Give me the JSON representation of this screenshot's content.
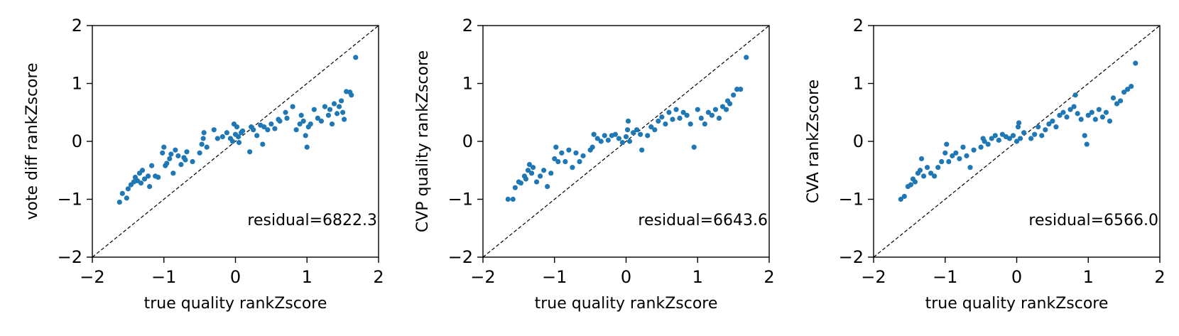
{
  "chart_data": [
    {
      "type": "scatter",
      "xlabel": "true quality rankZscore",
      "ylabel": "vote diff rankZscore",
      "xlim": [
        -2,
        2
      ],
      "ylim": [
        -2,
        2
      ],
      "xticks": [
        "−2",
        "−1",
        "0",
        "1",
        "2"
      ],
      "yticks": [
        "−2",
        "−1",
        "0",
        "1",
        "2"
      ],
      "reference_line": "y = x",
      "annotation": "residual=6822.3",
      "color": "#1f77b4",
      "points": [
        [
          -1.62,
          -1.05
        ],
        [
          -1.58,
          -0.9
        ],
        [
          -1.52,
          -0.98
        ],
        [
          -1.5,
          -0.82
        ],
        [
          -1.46,
          -0.75
        ],
        [
          -1.42,
          -0.7
        ],
        [
          -1.4,
          -0.62
        ],
        [
          -1.37,
          -0.68
        ],
        [
          -1.34,
          -0.55
        ],
        [
          -1.32,
          -0.72
        ],
        [
          -1.3,
          -0.5
        ],
        [
          -1.27,
          -0.65
        ],
        [
          -1.22,
          -0.6
        ],
        [
          -1.2,
          -0.78
        ],
        [
          -1.17,
          -0.42
        ],
        [
          -1.12,
          -0.6
        ],
        [
          -1.08,
          -0.62
        ],
        [
          -1.02,
          -0.2
        ],
        [
          -1.0,
          -0.1
        ],
        [
          -0.98,
          -0.42
        ],
        [
          -0.96,
          -0.38
        ],
        [
          -0.92,
          -0.3
        ],
        [
          -0.9,
          -0.22
        ],
        [
          -0.87,
          -0.55
        ],
        [
          -0.84,
          -0.15
        ],
        [
          -0.8,
          -0.25
        ],
        [
          -0.76,
          -0.4
        ],
        [
          -0.72,
          -0.28
        ],
        [
          -0.7,
          -0.32
        ],
        [
          -0.68,
          -0.18
        ],
        [
          -0.6,
          -0.35
        ],
        [
          -0.5,
          -0.2
        ],
        [
          -0.47,
          -0.05
        ],
        [
          -0.45,
          0.05
        ],
        [
          -0.44,
          0.15
        ],
        [
          -0.4,
          -0.1
        ],
        [
          -0.3,
          0.2
        ],
        [
          -0.25,
          0.05
        ],
        [
          -0.18,
          0.08
        ],
        [
          -0.12,
          0.15
        ],
        [
          -0.07,
          0.05
        ],
        [
          -0.04,
          0.0
        ],
        [
          -0.02,
          0.3
        ],
        [
          0.0,
          0.12
        ],
        [
          0.02,
          0.25
        ],
        [
          0.04,
          0.08
        ],
        [
          0.05,
          -0.02
        ],
        [
          0.08,
          0.15
        ],
        [
          0.1,
          0.18
        ],
        [
          0.2,
          -0.18
        ],
        [
          0.22,
          0.25
        ],
        [
          0.25,
          0.2
        ],
        [
          0.3,
          0.1
        ],
        [
          0.35,
          0.28
        ],
        [
          0.38,
          -0.05
        ],
        [
          0.4,
          0.25
        ],
        [
          0.45,
          0.2
        ],
        [
          0.5,
          0.3
        ],
        [
          0.55,
          0.22
        ],
        [
          0.6,
          0.38
        ],
        [
          0.62,
          0.35
        ],
        [
          0.7,
          0.5
        ],
        [
          0.72,
          0.4
        ],
        [
          0.8,
          0.6
        ],
        [
          0.85,
          0.2
        ],
        [
          0.9,
          0.3
        ],
        [
          0.92,
          0.45
        ],
        [
          0.95,
          0.35
        ],
        [
          0.98,
          0.1
        ],
        [
          1.0,
          -0.1
        ],
        [
          1.02,
          0.25
        ],
        [
          1.05,
          0.3
        ],
        [
          1.1,
          0.55
        ],
        [
          1.15,
          0.4
        ],
        [
          1.2,
          0.35
        ],
        [
          1.25,
          0.6
        ],
        [
          1.3,
          0.45
        ],
        [
          1.32,
          0.55
        ],
        [
          1.35,
          0.3
        ],
        [
          1.38,
          0.65
        ],
        [
          1.42,
          0.48
        ],
        [
          1.45,
          0.6
        ],
        [
          1.48,
          0.7
        ],
        [
          1.5,
          0.5
        ],
        [
          1.52,
          0.38
        ],
        [
          1.55,
          0.86
        ],
        [
          1.6,
          0.85
        ],
        [
          1.62,
          0.8
        ],
        [
          1.68,
          1.45
        ]
      ]
    },
    {
      "type": "scatter",
      "xlabel": "true quality rankZscore",
      "ylabel": "CVP quality rankZscore",
      "xlim": [
        -2,
        2
      ],
      "ylim": [
        -2,
        2
      ],
      "xticks": [
        "−2",
        "−1",
        "0",
        "1",
        "2"
      ],
      "yticks": [
        "−2",
        "−1",
        "0",
        "1",
        "2"
      ],
      "reference_line": "y = x",
      "annotation": "residual=6643.6",
      "color": "#1f77b4",
      "points": [
        [
          -1.65,
          -1.0
        ],
        [
          -1.58,
          -1.0
        ],
        [
          -1.55,
          -0.8
        ],
        [
          -1.5,
          -0.7
        ],
        [
          -1.47,
          -0.72
        ],
        [
          -1.42,
          -0.6
        ],
        [
          -1.4,
          -0.65
        ],
        [
          -1.37,
          -0.5
        ],
        [
          -1.35,
          -0.4
        ],
        [
          -1.32,
          -0.55
        ],
        [
          -1.3,
          -0.45
        ],
        [
          -1.25,
          -0.7
        ],
        [
          -1.2,
          -0.6
        ],
        [
          -1.15,
          -0.5
        ],
        [
          -1.1,
          -0.78
        ],
        [
          -1.05,
          -0.55
        ],
        [
          -1.0,
          -0.3
        ],
        [
          -0.98,
          -0.1
        ],
        [
          -0.95,
          -0.35
        ],
        [
          -0.9,
          -0.2
        ],
        [
          -0.85,
          -0.35
        ],
        [
          -0.8,
          -0.15
        ],
        [
          -0.75,
          -0.45
        ],
        [
          -0.7,
          -0.2
        ],
        [
          -0.65,
          -0.35
        ],
        [
          -0.6,
          -0.25
        ],
        [
          -0.5,
          -0.15
        ],
        [
          -0.47,
          -0.1
        ],
        [
          -0.45,
          0.12
        ],
        [
          -0.4,
          0.05
        ],
        [
          -0.35,
          0.0
        ],
        [
          -0.3,
          0.1
        ],
        [
          -0.25,
          0.02
        ],
        [
          -0.2,
          0.1
        ],
        [
          -0.15,
          0.12
        ],
        [
          -0.1,
          0.05
        ],
        [
          -0.05,
          -0.02
        ],
        [
          0.0,
          0.08
        ],
        [
          0.02,
          0.2
        ],
        [
          0.03,
          0.35
        ],
        [
          0.05,
          0.0
        ],
        [
          0.1,
          0.15
        ],
        [
          0.15,
          0.2
        ],
        [
          0.2,
          0.12
        ],
        [
          0.22,
          -0.15
        ],
        [
          0.3,
          0.1
        ],
        [
          0.35,
          0.25
        ],
        [
          0.4,
          0.2
        ],
        [
          0.45,
          0.35
        ],
        [
          0.5,
          0.42
        ],
        [
          0.55,
          0.3
        ],
        [
          0.6,
          0.5
        ],
        [
          0.65,
          0.38
        ],
        [
          0.7,
          0.55
        ],
        [
          0.75,
          0.4
        ],
        [
          0.8,
          0.5
        ],
        [
          0.85,
          0.45
        ],
        [
          0.9,
          0.3
        ],
        [
          0.95,
          -0.1
        ],
        [
          1.0,
          0.55
        ],
        [
          1.05,
          0.4
        ],
        [
          1.1,
          0.3
        ],
        [
          1.15,
          0.5
        ],
        [
          1.2,
          0.45
        ],
        [
          1.25,
          0.55
        ],
        [
          1.3,
          0.4
        ],
        [
          1.35,
          0.6
        ],
        [
          1.4,
          0.55
        ],
        [
          1.42,
          0.7
        ],
        [
          1.45,
          0.65
        ],
        [
          1.5,
          0.8
        ],
        [
          1.55,
          0.9
        ],
        [
          1.6,
          0.9
        ],
        [
          1.68,
          1.45
        ]
      ]
    },
    {
      "type": "scatter",
      "xlabel": "true quality rankZscore",
      "ylabel": "CVA rankZscore",
      "xlim": [
        -2,
        2
      ],
      "ylim": [
        -2,
        2
      ],
      "xticks": [
        "−2",
        "−1",
        "0",
        "1",
        "2"
      ],
      "yticks": [
        "−2",
        "−1",
        "0",
        "1",
        "2"
      ],
      "reference_line": "y = x",
      "annotation": "residual=6566.0",
      "color": "#1f77b4",
      "points": [
        [
          -1.62,
          -1.0
        ],
        [
          -1.57,
          -0.95
        ],
        [
          -1.52,
          -0.78
        ],
        [
          -1.48,
          -0.75
        ],
        [
          -1.45,
          -0.65
        ],
        [
          -1.42,
          -0.7
        ],
        [
          -1.38,
          -0.55
        ],
        [
          -1.35,
          -0.5
        ],
        [
          -1.33,
          -0.3
        ],
        [
          -1.3,
          -0.6
        ],
        [
          -1.25,
          -0.45
        ],
        [
          -1.2,
          -0.55
        ],
        [
          -1.15,
          -0.6
        ],
        [
          -1.1,
          -0.45
        ],
        [
          -1.05,
          -0.35
        ],
        [
          -1.0,
          -0.2
        ],
        [
          -0.98,
          -0.05
        ],
        [
          -0.95,
          -0.35
        ],
        [
          -0.9,
          -0.25
        ],
        [
          -0.85,
          -0.2
        ],
        [
          -0.8,
          -0.3
        ],
        [
          -0.75,
          -0.1
        ],
        [
          -0.7,
          -0.25
        ],
        [
          -0.65,
          -0.45
        ],
        [
          -0.6,
          -0.15
        ],
        [
          -0.5,
          -0.1
        ],
        [
          -0.47,
          0.05
        ],
        [
          -0.45,
          0.0
        ],
        [
          -0.4,
          -0.05
        ],
        [
          -0.35,
          0.05
        ],
        [
          -0.3,
          0.1
        ],
        [
          -0.25,
          0.02
        ],
        [
          -0.2,
          0.12
        ],
        [
          -0.15,
          0.08
        ],
        [
          -0.1,
          0.05
        ],
        [
          -0.05,
          0.1
        ],
        [
          0.0,
          0.0
        ],
        [
          0.02,
          0.25
        ],
        [
          0.03,
          0.32
        ],
        [
          0.05,
          0.05
        ],
        [
          0.1,
          0.15
        ],
        [
          0.2,
          0.05
        ],
        [
          0.25,
          0.12
        ],
        [
          0.3,
          0.25
        ],
        [
          0.35,
          0.1
        ],
        [
          0.4,
          0.2
        ],
        [
          0.45,
          0.3
        ],
        [
          0.5,
          0.35
        ],
        [
          0.55,
          0.25
        ],
        [
          0.6,
          0.45
        ],
        [
          0.65,
          0.5
        ],
        [
          0.7,
          0.42
        ],
        [
          0.75,
          0.55
        ],
        [
          0.8,
          0.6
        ],
        [
          0.82,
          0.8
        ],
        [
          0.85,
          0.48
        ],
        [
          0.9,
          0.38
        ],
        [
          0.95,
          0.1
        ],
        [
          0.98,
          -0.05
        ],
        [
          1.0,
          0.45
        ],
        [
          1.05,
          0.5
        ],
        [
          1.1,
          0.38
        ],
        [
          1.15,
          0.55
        ],
        [
          1.2,
          0.42
        ],
        [
          1.25,
          0.5
        ],
        [
          1.3,
          0.35
        ],
        [
          1.35,
          0.75
        ],
        [
          1.4,
          0.65
        ],
        [
          1.45,
          0.7
        ],
        [
          1.5,
          0.85
        ],
        [
          1.55,
          0.9
        ],
        [
          1.6,
          0.95
        ],
        [
          1.66,
          1.35
        ]
      ]
    }
  ]
}
